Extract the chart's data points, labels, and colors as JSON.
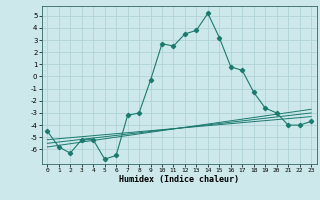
{
  "xlabel": "Humidex (Indice chaleur)",
  "bg_color": "#cce8ea",
  "grid_color": "#aacfd2",
  "line_color": "#1a7a6e",
  "xlim": [
    -0.5,
    23.5
  ],
  "ylim": [
    -7.2,
    5.8
  ],
  "xticks": [
    0,
    1,
    2,
    3,
    4,
    5,
    6,
    7,
    8,
    9,
    10,
    11,
    12,
    13,
    14,
    15,
    16,
    17,
    18,
    19,
    20,
    21,
    22,
    23
  ],
  "yticks": [
    -6,
    -5,
    -4,
    -3,
    -2,
    -1,
    0,
    1,
    2,
    3,
    4,
    5
  ],
  "series1_x": [
    0,
    1,
    2,
    3,
    4,
    5,
    6,
    7,
    8,
    9,
    10,
    11,
    12,
    13,
    14,
    15,
    16,
    17,
    18,
    19,
    20,
    21,
    22,
    23
  ],
  "series1_y": [
    -4.5,
    -5.8,
    -6.3,
    -5.2,
    -5.2,
    -6.8,
    -6.5,
    -3.2,
    -3.0,
    -0.3,
    2.7,
    2.5,
    3.5,
    3.8,
    5.2,
    3.2,
    0.8,
    0.5,
    -1.3,
    -2.6,
    -3.0,
    -4.0,
    -4.0,
    -3.7
  ],
  "reg_lines": [
    {
      "x": [
        0,
        23
      ],
      "y": [
        -5.2,
        -3.3
      ]
    },
    {
      "x": [
        0,
        23
      ],
      "y": [
        -5.5,
        -3.0
      ]
    },
    {
      "x": [
        0,
        23
      ],
      "y": [
        -5.8,
        -2.7
      ]
    }
  ]
}
